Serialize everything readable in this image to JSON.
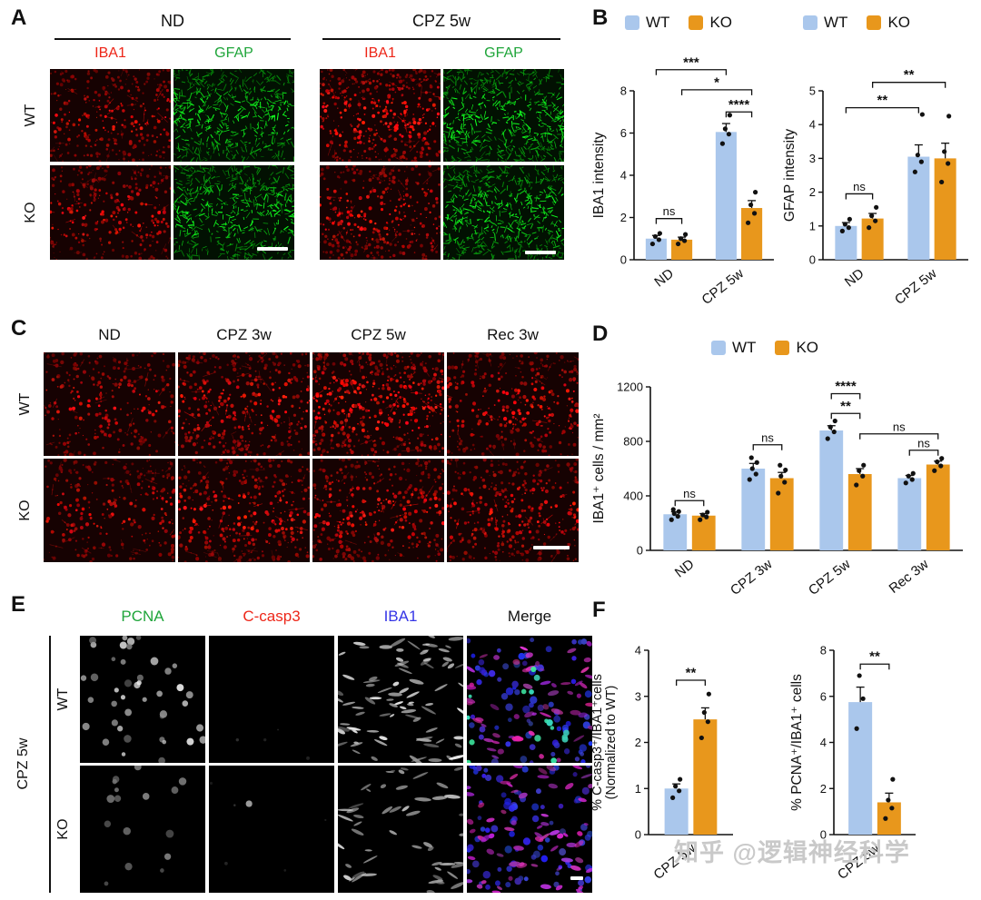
{
  "colors": {
    "wt": "#aac7ec",
    "ko": "#e8971c",
    "red": "#ed2618",
    "green": "#1fa53a",
    "blue": "#3535e6",
    "axis": "#111111"
  },
  "legend": {
    "wt_label": "WT",
    "ko_label": "KO"
  },
  "panel_a": {
    "label": "A",
    "group_nd": "ND",
    "group_cpz": "CPZ 5w",
    "ch_iba1": "IBA1",
    "ch_gfap": "GFAP",
    "row_wt": "WT",
    "row_ko": "KO"
  },
  "panel_b": {
    "label": "B"
  },
  "panel_c": {
    "label": "C",
    "cols": [
      "ND",
      "CPZ 3w",
      "CPZ 5w",
      "Rec 3w"
    ],
    "row_wt": "WT",
    "row_ko": "KO"
  },
  "panel_d": {
    "label": "D"
  },
  "panel_e": {
    "label": "E",
    "side_label": "CPZ 5w",
    "col_pcna": "PCNA",
    "col_ccasp3": "C-casp3",
    "col_iba1": "IBA1",
    "col_merge": "Merge",
    "row_wt": "WT",
    "row_ko": "KO"
  },
  "panel_f": {
    "label": "F"
  },
  "watermark": "知乎 @逻辑神经科学",
  "chart_data": [
    {
      "id": "iba1-intensity",
      "type": "bar",
      "ylabel": "IBA1 intensity",
      "ylim": [
        0,
        8
      ],
      "yticks": [
        0,
        2,
        4,
        6,
        8
      ],
      "categories": [
        "ND",
        "CPZ 5w"
      ],
      "legend_position": "top",
      "grid": false,
      "series": [
        {
          "name": "WT",
          "color_key": "wt",
          "values": [
            1.0,
            6.05
          ],
          "errors": [
            0.15,
            0.4
          ],
          "points": [
            [
              0.75,
              0.95,
              1.1,
              1.25
            ],
            [
              5.5,
              5.95,
              6.2,
              6.85
            ]
          ]
        },
        {
          "name": "KO",
          "color_key": "ko",
          "values": [
            0.95,
            2.45
          ],
          "errors": [
            0.12,
            0.35
          ],
          "points": [
            [
              0.75,
              0.9,
              1.0,
              1.2
            ],
            [
              1.75,
              2.2,
              2.6,
              3.2
            ]
          ]
        }
      ],
      "sig": [
        {
          "text": "ns",
          "b1": 0,
          "b2": 1,
          "y": 1.95
        },
        {
          "text": "****",
          "b1": 2,
          "b2": 3,
          "y": 7.0
        },
        {
          "text": "*",
          "b1": 1,
          "b2": 3,
          "y": 8.05
        },
        {
          "text": "***",
          "b1": 0,
          "b2": 2,
          "y": 9.0
        }
      ]
    },
    {
      "id": "gfap-intensity",
      "type": "bar",
      "ylabel": "GFAP intensity",
      "ylim": [
        0,
        5
      ],
      "yticks": [
        0,
        1,
        2,
        3,
        4,
        5
      ],
      "categories": [
        "ND",
        "CPZ 5w"
      ],
      "legend_position": "top",
      "grid": false,
      "series": [
        {
          "name": "WT",
          "color_key": "wt",
          "values": [
            1.0,
            3.05
          ],
          "errors": [
            0.1,
            0.35
          ],
          "points": [
            [
              0.85,
              0.95,
              1.05,
              1.2
            ],
            [
              2.6,
              2.9,
              3.1,
              4.3
            ]
          ]
        },
        {
          "name": "KO",
          "color_key": "ko",
          "values": [
            1.22,
            3.0
          ],
          "errors": [
            0.15,
            0.45
          ],
          "points": [
            [
              0.95,
              1.15,
              1.3,
              1.55
            ],
            [
              2.3,
              2.85,
              3.2,
              4.25
            ]
          ]
        }
      ],
      "sig": [
        {
          "text": "ns",
          "b1": 0,
          "b2": 1,
          "y": 1.95
        },
        {
          "text": "**",
          "b1": 0,
          "b2": 2,
          "y": 4.5
        },
        {
          "text": "**",
          "b1": 1,
          "b2": 3,
          "y": 5.25
        }
      ]
    },
    {
      "id": "iba1-cells",
      "type": "bar",
      "ylabel": "IBA1⁺ cells / mm²",
      "ylim": [
        0,
        1200
      ],
      "yticks": [
        0,
        400,
        800,
        1200
      ],
      "categories": [
        "ND",
        "CPZ 3w",
        "CPZ 5w",
        "Rec 3w"
      ],
      "legend_position": "top",
      "grid": false,
      "series": [
        {
          "name": "WT",
          "color_key": "wt",
          "values": [
            265,
            600,
            880,
            530
          ],
          "errors": [
            18,
            38,
            35,
            20
          ],
          "points": [
            [
              225,
              250,
              270,
              285,
              300
            ],
            [
              520,
              560,
              600,
              645,
              680
            ],
            [
              820,
              870,
              905,
              950
            ],
            [
              495,
              520,
              545,
              565
            ]
          ]
        },
        {
          "name": "KO",
          "color_key": "ko",
          "values": [
            255,
            530,
            560,
            630
          ],
          "errors": [
            15,
            42,
            40,
            25
          ],
          "points": [
            [
              225,
              245,
              260,
              280
            ],
            [
              420,
              500,
              545,
              590,
              625
            ],
            [
              480,
              545,
              585,
              625
            ],
            [
              585,
              620,
              650,
              675
            ]
          ]
        }
      ],
      "sig": [
        {
          "text": "ns",
          "b1": 0,
          "b2": 1,
          "y": 365
        },
        {
          "text": "ns",
          "b1": 2,
          "b2": 3,
          "y": 775
        },
        {
          "text": "**",
          "b1": 4,
          "b2": 5,
          "y": 1005
        },
        {
          "text": "****",
          "b1": 4,
          "b2": 5,
          "y": 1150
        },
        {
          "text": "ns",
          "b1": 5,
          "b2": 7,
          "y": 855
        },
        {
          "text": "ns",
          "b1": 6,
          "b2": 7,
          "y": 735
        }
      ]
    },
    {
      "id": "ccasp3-ratio",
      "type": "bar",
      "ylabel": "% C-casp3⁺/IBA1⁺cells",
      "ylabel2": "(Normalized to WT)",
      "ylim": [
        0,
        4
      ],
      "yticks": [
        0,
        1,
        2,
        3,
        4
      ],
      "categories": [
        "CPZ 5w"
      ],
      "grid": false,
      "series": [
        {
          "name": "WT",
          "color_key": "wt",
          "values": [
            1.0
          ],
          "errors": [
            0.1
          ],
          "points": [
            [
              0.8,
              0.95,
              1.05,
              1.2
            ]
          ]
        },
        {
          "name": "KO",
          "color_key": "ko",
          "values": [
            2.5
          ],
          "errors": [
            0.25
          ],
          "points": [
            [
              2.1,
              2.45,
              2.65,
              3.05
            ]
          ]
        }
      ],
      "sig": [
        {
          "text": "**",
          "b1": 0,
          "b2": 1,
          "y": 3.35
        }
      ]
    },
    {
      "id": "pcna-ratio",
      "type": "bar",
      "ylabel": "% PCNA⁺/IBA1⁺ cells",
      "ylim": [
        0,
        8
      ],
      "yticks": [
        0,
        2,
        4,
        6,
        8
      ],
      "categories": [
        "CPZ 5w"
      ],
      "grid": false,
      "series": [
        {
          "name": "WT",
          "color_key": "wt",
          "values": [
            5.75
          ],
          "errors": [
            0.65
          ],
          "points": [
            [
              4.6,
              5.9,
              6.9
            ]
          ]
        },
        {
          "name": "KO",
          "color_key": "ko",
          "values": [
            1.4
          ],
          "errors": [
            0.4
          ],
          "points": [
            [
              0.7,
              1.15,
              1.5,
              2.4
            ]
          ]
        }
      ],
      "sig": [
        {
          "text": "**",
          "b1": 0,
          "b2": 1,
          "y": 7.4
        }
      ]
    }
  ]
}
